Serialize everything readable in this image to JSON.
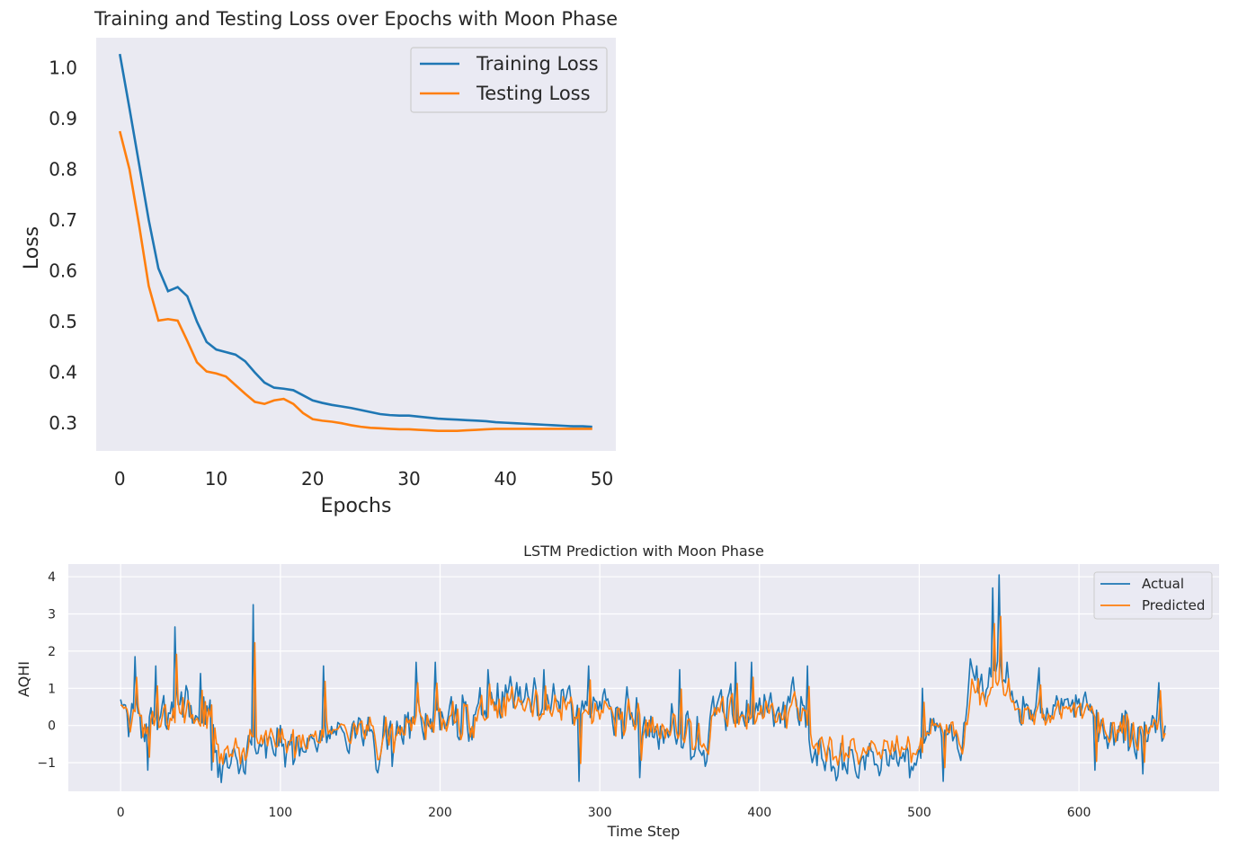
{
  "colors": {
    "blue": "#1f77b4",
    "orange": "#ff7f0e",
    "panel": "#eaeaf2"
  },
  "chart_data": [
    {
      "type": "line",
      "title": "Training and Testing Loss over Epochs with Moon Phase",
      "xlabel": "Epochs",
      "ylabel": "Loss",
      "xlim": [
        -2.45,
        51.45
      ],
      "ylim": [
        0.2455,
        1.059
      ],
      "xticks": [
        0,
        10,
        20,
        30,
        40,
        50
      ],
      "yticks": [
        0.3,
        0.4,
        0.5,
        0.6,
        0.7,
        0.8,
        0.9,
        1.0
      ],
      "ytick_labels": [
        "0.3",
        "0.4",
        "0.5",
        "0.6",
        "0.7",
        "0.8",
        "0.9",
        "1.0"
      ],
      "grid": false,
      "legend": "top-right",
      "x": [
        0,
        1,
        2,
        3,
        4,
        5,
        6,
        7,
        8,
        9,
        10,
        11,
        12,
        13,
        14,
        15,
        16,
        17,
        18,
        19,
        20,
        21,
        22,
        23,
        24,
        25,
        26,
        27,
        28,
        29,
        30,
        31,
        32,
        33,
        34,
        35,
        36,
        37,
        38,
        39,
        40,
        41,
        42,
        43,
        44,
        45,
        46,
        47,
        48,
        49
      ],
      "series": [
        {
          "name": "Training Loss",
          "color": "#1f77b4",
          "values": [
            1.027,
            0.92,
            0.81,
            0.7,
            0.605,
            0.56,
            0.568,
            0.55,
            0.5,
            0.46,
            0.445,
            0.44,
            0.435,
            0.422,
            0.4,
            0.38,
            0.37,
            0.368,
            0.365,
            0.355,
            0.345,
            0.34,
            0.336,
            0.333,
            0.33,
            0.326,
            0.322,
            0.318,
            0.316,
            0.315,
            0.315,
            0.313,
            0.311,
            0.309,
            0.308,
            0.307,
            0.306,
            0.305,
            0.304,
            0.302,
            0.301,
            0.3,
            0.299,
            0.298,
            0.297,
            0.296,
            0.295,
            0.294,
            0.294,
            0.293
          ]
        },
        {
          "name": "Testing Loss",
          "color": "#ff7f0e",
          "values": [
            0.875,
            0.8,
            0.69,
            0.57,
            0.502,
            0.505,
            0.502,
            0.462,
            0.42,
            0.402,
            0.398,
            0.392,
            0.375,
            0.358,
            0.342,
            0.338,
            0.345,
            0.348,
            0.338,
            0.32,
            0.308,
            0.305,
            0.303,
            0.3,
            0.296,
            0.293,
            0.291,
            0.29,
            0.289,
            0.288,
            0.288,
            0.287,
            0.286,
            0.285,
            0.285,
            0.285,
            0.286,
            0.287,
            0.288,
            0.289,
            0.289,
            0.289,
            0.289,
            0.289,
            0.289,
            0.289,
            0.289,
            0.289,
            0.289,
            0.289
          ]
        }
      ]
    },
    {
      "type": "line",
      "title": "LSTM Prediction with Moon Phase",
      "xlabel": "Time Step",
      "ylabel": "AQHI",
      "xlim": [
        -32.75,
        687.75
      ],
      "ylim": [
        -1.77,
        4.34
      ],
      "xticks": [
        0,
        100,
        200,
        300,
        400,
        500,
        600
      ],
      "yticks": [
        -1,
        0,
        1,
        2,
        3,
        4
      ],
      "ytick_labels": [
        "−1",
        "0",
        "1",
        "2",
        "3",
        "4"
      ],
      "grid": true,
      "legend": "top-right",
      "n_points": 655,
      "series_names": [
        "Actual",
        "Predicted"
      ],
      "series_colors": [
        "#1f77b4",
        "#ff7f0e"
      ],
      "actual_segments": [
        {
          "start": 0,
          "end": 30,
          "base": 0.2,
          "amp": 0.7
        },
        {
          "start": 30,
          "end": 60,
          "base": 0.4,
          "amp": 0.6
        },
        {
          "start": 60,
          "end": 80,
          "base": -1.0,
          "amp": 0.25
        },
        {
          "start": 80,
          "end": 120,
          "base": -0.6,
          "amp": 0.4
        },
        {
          "start": 120,
          "end": 180,
          "base": -0.2,
          "amp": 0.8
        },
        {
          "start": 180,
          "end": 230,
          "base": 0.2,
          "amp": 0.9
        },
        {
          "start": 230,
          "end": 280,
          "base": 0.7,
          "amp": 0.5
        },
        {
          "start": 280,
          "end": 320,
          "base": 0.4,
          "amp": 0.7
        },
        {
          "start": 320,
          "end": 370,
          "base": -0.2,
          "amp": 0.8
        },
        {
          "start": 370,
          "end": 430,
          "base": 0.5,
          "amp": 0.7
        },
        {
          "start": 430,
          "end": 500,
          "base": -0.9,
          "amp": 0.35
        },
        {
          "start": 500,
          "end": 530,
          "base": -0.2,
          "amp": 0.8
        },
        {
          "start": 530,
          "end": 560,
          "base": 1.0,
          "amp": 1.0
        },
        {
          "start": 560,
          "end": 610,
          "base": 0.5,
          "amp": 0.6
        },
        {
          "start": 610,
          "end": 656,
          "base": -0.2,
          "amp": 0.6
        }
      ],
      "actual_peaks": [
        [
          0,
          0.7
        ],
        [
          5,
          -0.3
        ],
        [
          9,
          1.85
        ],
        [
          17,
          -1.2
        ],
        [
          22,
          1.6
        ],
        [
          34,
          2.65
        ],
        [
          50,
          1.4
        ],
        [
          57,
          -1.2
        ],
        [
          83,
          3.25
        ],
        [
          100,
          0.0
        ],
        [
          127,
          1.6
        ],
        [
          170,
          -1.1
        ],
        [
          185,
          1.7
        ],
        [
          197,
          1.7
        ],
        [
          230,
          1.5
        ],
        [
          265,
          1.5
        ],
        [
          287,
          -1.5
        ],
        [
          293,
          1.6
        ],
        [
          325,
          -1.4
        ],
        [
          350,
          1.5
        ],
        [
          385,
          1.7
        ],
        [
          395,
          1.7
        ],
        [
          430,
          1.6
        ],
        [
          455,
          -1.3
        ],
        [
          495,
          -1.1
        ],
        [
          502,
          1.0
        ],
        [
          515,
          -1.5
        ],
        [
          536,
          1.6
        ],
        [
          546,
          3.7
        ],
        [
          550,
          4.05
        ],
        [
          555,
          1.7
        ],
        [
          575,
          1.55
        ],
        [
          610,
          -1.2
        ],
        [
          640,
          -1.3
        ],
        [
          650,
          1.15
        ],
        [
          654,
          0.0
        ]
      ],
      "predicted_shift": 1,
      "predicted_shrink": 0.72
    }
  ]
}
